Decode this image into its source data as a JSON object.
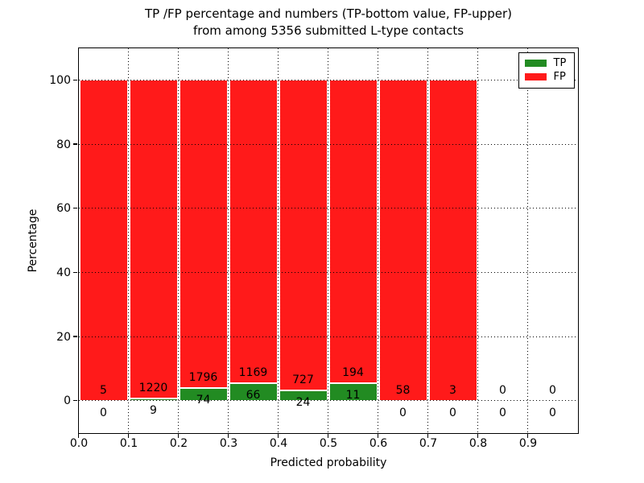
{
  "title": {
    "line1": "TP /FP percentage and numbers (TP-bottom value, FP-upper)",
    "line2": "from among 5356 submitted L-type contacts"
  },
  "legend": [
    {
      "label": "TP",
      "color": "#228b22"
    },
    {
      "label": "FP",
      "color": "#ff1a1a"
    }
  ],
  "chart_data": {
    "type": "bar",
    "stacked": true,
    "normalized": "each bar shows TP/FP as percent of bin total; TP segment bottom, FP segment top",
    "title": "TP /FP percentage and numbers (TP-bottom value, FP-upper) from among 5356 submitted L-type contacts",
    "xlabel": "Predicted probability",
    "ylabel": "Percentage",
    "total_contacts": 5356,
    "bin_width": 0.1,
    "categories": [
      "0.0",
      "0.1",
      "0.2",
      "0.3",
      "0.4",
      "0.5",
      "0.6",
      "0.7",
      "0.8",
      "0.9"
    ],
    "series": [
      {
        "name": "TP",
        "color": "#228b22",
        "counts": [
          0,
          9,
          74,
          66,
          24,
          11,
          0,
          0,
          0,
          0
        ]
      },
      {
        "name": "FP",
        "color": "#ff1a1a",
        "counts": [
          5,
          1220,
          1796,
          1169,
          727,
          194,
          58,
          3,
          0,
          0
        ]
      }
    ],
    "tp_percent_by_bin": [
      0,
      0.73,
      3.96,
      5.34,
      3.2,
      5.37,
      0,
      0,
      null,
      null
    ],
    "xticks": [
      "0.0",
      "0.1",
      "0.2",
      "0.3",
      "0.4",
      "0.5",
      "0.6",
      "0.7",
      "0.8",
      "0.9"
    ],
    "yticks": [
      0,
      20,
      40,
      60,
      80,
      100
    ],
    "xlim": [
      0.0,
      1.0
    ],
    "ylim": [
      -10,
      110
    ],
    "grid": "dotted black, horizontal and vertical, drawn over bars",
    "legend_position": "upper right"
  }
}
